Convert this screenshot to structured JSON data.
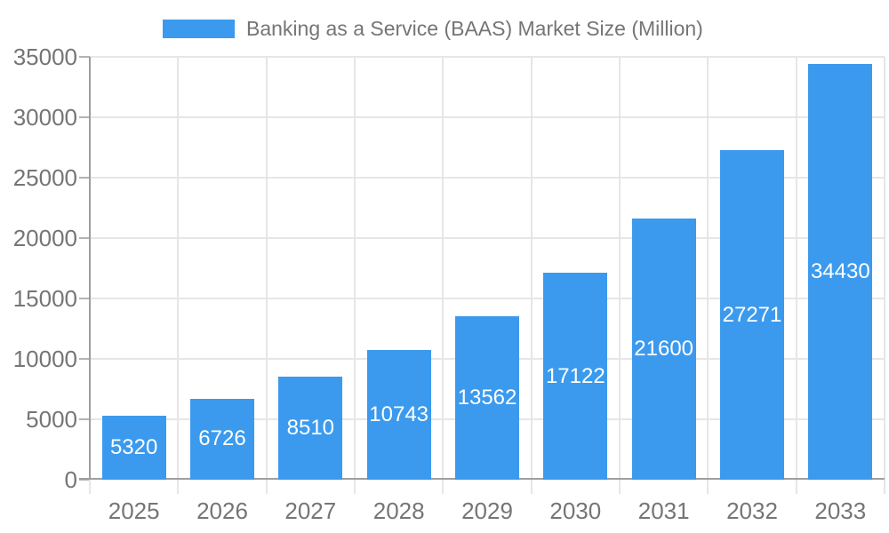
{
  "chart_data": {
    "type": "bar",
    "title": "Banking as a Service (BAAS) Market Size (Million)",
    "legend_position": "top",
    "categories": [
      "2025",
      "2026",
      "2027",
      "2028",
      "2029",
      "2030",
      "2031",
      "2032",
      "2033"
    ],
    "series": [
      {
        "name": "Banking as a Service (BAAS) Market Size (Million)",
        "values": [
          5320,
          6726,
          8510,
          10743,
          13562,
          17122,
          21600,
          27271,
          34430
        ]
      }
    ],
    "value_labels_shown": true,
    "xlabel": "",
    "ylabel": "",
    "ylim": [
      0,
      35000
    ],
    "yticks": [
      0,
      5000,
      10000,
      15000,
      20000,
      25000,
      30000,
      35000
    ],
    "ytick_labels": [
      "0",
      "5000",
      "10000",
      "15000",
      "20000",
      "25000",
      "30000",
      "35000"
    ],
    "grid": true,
    "colors": {
      "bar": "#3b9aed",
      "value_label": "#ffffff",
      "gridline": "#e6e6e6",
      "axis": "#9e9e9e",
      "tick": "#b3b3b3",
      "text": "#757575",
      "background": "#ffffff"
    }
  }
}
